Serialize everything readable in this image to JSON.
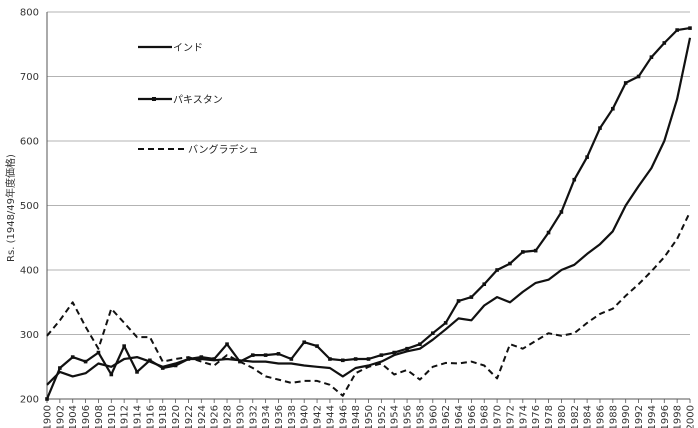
{
  "chart_data": {
    "type": "line",
    "ylabel": "Rs. (1948/49年度価格)",
    "xlabel": "",
    "title": "",
    "ylim": [
      200,
      800
    ],
    "yticks": [
      200,
      300,
      400,
      500,
      600,
      700,
      800
    ],
    "xlim": [
      1900,
      2000
    ],
    "xtick_labels": [
      "1900",
      "1902",
      "1904",
      "1906",
      "1908",
      "1910",
      "1912",
      "1914",
      "1916",
      "1918",
      "1920",
      "1922",
      "1924",
      "1926",
      "1928",
      "1930",
      "1932",
      "1934",
      "1936",
      "1938",
      "1940",
      "1942",
      "1944",
      "1946",
      "1948",
      "1950",
      "1952",
      "1954",
      "1956",
      "1958",
      "1960",
      "1962",
      "1964",
      "1966",
      "1968",
      "1970",
      "1972",
      "1974",
      "1976",
      "1978",
      "1980",
      "1982",
      "1984",
      "1986",
      "1988",
      "1990",
      "1992",
      "1994",
      "1996",
      "1998",
      "2000"
    ],
    "grid": "horizontal",
    "legend_position": "top-left",
    "series": [
      {
        "name": "インド",
        "style": "solid",
        "x": [
          1900,
          1902,
          1904,
          1906,
          1908,
          1910,
          1912,
          1914,
          1916,
          1918,
          1920,
          1922,
          1924,
          1926,
          1928,
          1930,
          1932,
          1934,
          1936,
          1938,
          1940,
          1942,
          1944,
          1946,
          1948,
          1950,
          1952,
          1954,
          1956,
          1958,
          1960,
          1962,
          1964,
          1966,
          1968,
          1970,
          1972,
          1974,
          1976,
          1978,
          1980,
          1982,
          1984,
          1986,
          1988,
          1990,
          1992,
          1994,
          1996,
          1998,
          2000
        ],
        "y": [
          222,
          242,
          235,
          240,
          255,
          250,
          262,
          265,
          258,
          250,
          255,
          262,
          262,
          260,
          262,
          260,
          258,
          258,
          255,
          255,
          252,
          250,
          248,
          235,
          248,
          252,
          258,
          268,
          274,
          278,
          292,
          308,
          325,
          322,
          345,
          358,
          350,
          366,
          380,
          385,
          400,
          408,
          425,
          440,
          460,
          500,
          530,
          558,
          600,
          665,
          760
        ]
      },
      {
        "name": "パキスタン",
        "style": "solid-marker",
        "x": [
          1900,
          1902,
          1904,
          1906,
          1908,
          1910,
          1912,
          1914,
          1916,
          1918,
          1920,
          1922,
          1924,
          1926,
          1928,
          1930,
          1932,
          1934,
          1936,
          1938,
          1940,
          1942,
          1944,
          1946,
          1948,
          1950,
          1952,
          1954,
          1956,
          1958,
          1960,
          1962,
          1964,
          1966,
          1968,
          1970,
          1972,
          1974,
          1976,
          1978,
          1980,
          1982,
          1984,
          1986,
          1988,
          1990,
          1992,
          1994,
          1996,
          1998,
          2000
        ],
        "y": [
          200,
          248,
          265,
          258,
          272,
          238,
          282,
          242,
          260,
          248,
          252,
          262,
          265,
          262,
          285,
          258,
          268,
          268,
          270,
          262,
          288,
          282,
          262,
          260,
          262,
          262,
          268,
          272,
          278,
          285,
          302,
          318,
          352,
          358,
          378,
          400,
          410,
          428,
          430,
          458,
          490,
          540,
          575,
          620,
          650,
          690,
          700,
          730,
          752,
          772,
          775
        ]
      },
      {
        "name": "バングラデシュ",
        "style": "dashed",
        "x": [
          1900,
          1902,
          1904,
          1906,
          1908,
          1910,
          1912,
          1914,
          1916,
          1918,
          1920,
          1922,
          1924,
          1926,
          1928,
          1930,
          1932,
          1934,
          1936,
          1938,
          1940,
          1942,
          1944,
          1946,
          1948,
          1950,
          1952,
          1954,
          1956,
          1958,
          1960,
          1962,
          1964,
          1966,
          1968,
          1970,
          1972,
          1974,
          1976,
          1978,
          1980,
          1982,
          1984,
          1986,
          1988,
          1990,
          1992,
          1994,
          1996,
          1998,
          2000
        ],
        "y": [
          298,
          322,
          350,
          312,
          278,
          340,
          318,
          296,
          296,
          258,
          262,
          265,
          258,
          252,
          268,
          258,
          248,
          235,
          230,
          225,
          228,
          228,
          222,
          205,
          240,
          250,
          255,
          238,
          245,
          230,
          250,
          256,
          255,
          258,
          252,
          232,
          285,
          278,
          290,
          302,
          298,
          302,
          318,
          332,
          340,
          360,
          378,
          398,
          420,
          448,
          490
        ]
      }
    ]
  }
}
